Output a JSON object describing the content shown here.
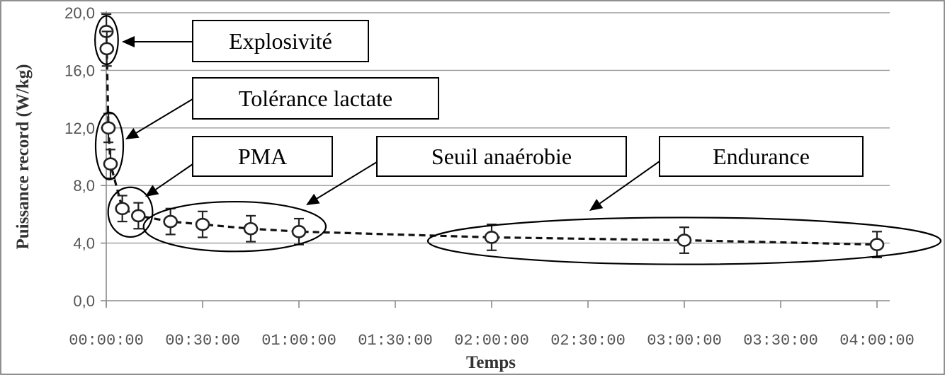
{
  "chart_data": {
    "type": "line",
    "xlabel": "Temps",
    "ylabel": "Puissance record  (W/kg)",
    "x_tick_labels": [
      "00:00:00",
      "00:30:00",
      "01:00:00",
      "01:30:00",
      "02:00:00",
      "02:30:00",
      "03:00:00",
      "03:30:00",
      "04:00:00"
    ],
    "x_ticks_minutes": [
      0,
      30,
      60,
      90,
      120,
      150,
      180,
      210,
      240
    ],
    "y_tick_labels": [
      "0,0",
      "4,0",
      "8,0",
      "12,0",
      "16,0",
      "20,0"
    ],
    "y_ticks": [
      0,
      4,
      8,
      12,
      16,
      20
    ],
    "xlim_minutes": [
      0,
      245
    ],
    "ylim": [
      0,
      20
    ],
    "grid": "horizontal",
    "series": [
      {
        "x_minutes": [
          0.05,
          0.25,
          1,
          2,
          5,
          10,
          20,
          30,
          45,
          60,
          120,
          180,
          240
        ],
        "y": [
          18.7,
          17.5,
          12.0,
          9.5,
          6.4,
          5.9,
          5.5,
          5.3,
          5.0,
          4.8,
          4.4,
          4.2,
          3.9
        ],
        "err": [
          1.2,
          1.2,
          1.0,
          1.0,
          0.9,
          0.9,
          0.9,
          0.9,
          0.9,
          0.9,
          0.9,
          0.9,
          0.9
        ]
      }
    ],
    "annotations": [
      {
        "label": "Explosivité",
        "group_indices": [
          0,
          1
        ]
      },
      {
        "label": "Tolérance lactate",
        "group_indices": [
          2,
          3
        ]
      },
      {
        "label": "PMA",
        "group_indices": [
          4,
          5
        ]
      },
      {
        "label": "Seuil anaérobie",
        "group_indices": [
          6,
          7,
          8,
          9
        ]
      },
      {
        "label": "Endurance",
        "group_indices": [
          10,
          11,
          12
        ]
      }
    ]
  }
}
